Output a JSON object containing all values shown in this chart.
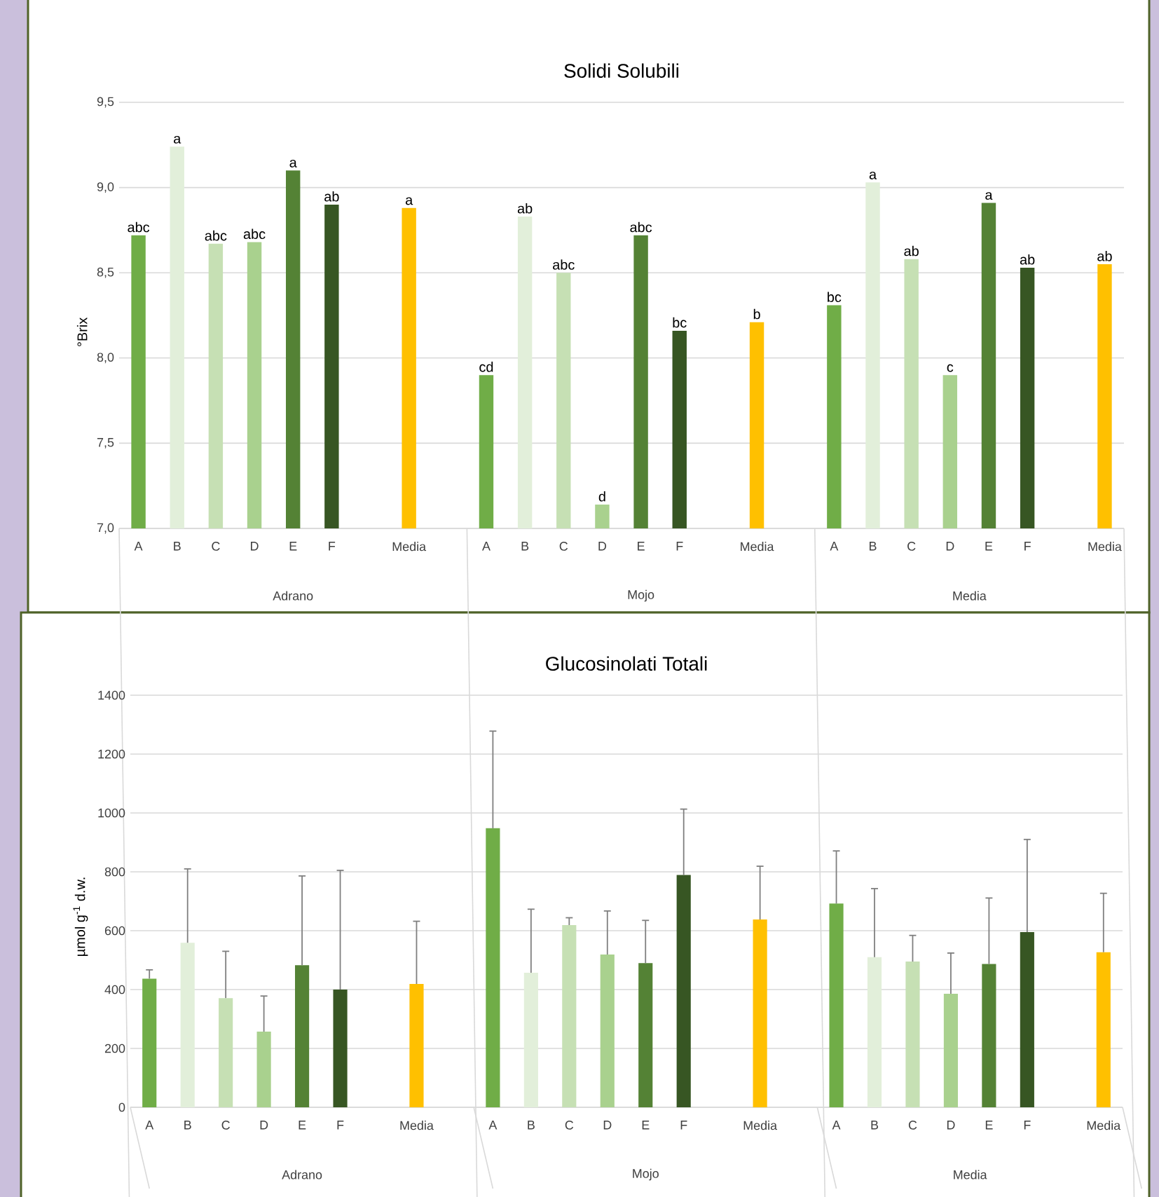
{
  "chart_data": [
    {
      "type": "bar",
      "title": "Solidi Solubili",
      "ylabel": "°Brix",
      "categories": [
        "A",
        "B",
        "C",
        "D",
        "E",
        "F",
        null,
        "Media",
        "A",
        "B",
        "C",
        "D",
        "E",
        "F",
        null,
        "Media",
        "A",
        "B",
        "C",
        "D",
        "E",
        "F",
        null,
        "Media"
      ],
      "values": [
        8.72,
        9.24,
        8.67,
        8.68,
        9.1,
        8.9,
        null,
        8.88,
        7.9,
        8.83,
        8.5,
        7.14,
        8.72,
        8.16,
        null,
        8.21,
        8.31,
        9.03,
        8.58,
        7.9,
        8.91,
        8.53,
        null,
        8.55
      ],
      "colors": [
        "#70ad47",
        "#e2efda",
        "#c6e0b4",
        "#a9d18e",
        "#548235",
        "#375623",
        null,
        "#ffc000",
        "#70ad47",
        "#e2efda",
        "#c6e0b4",
        "#a9d18e",
        "#548235",
        "#375623",
        null,
        "#ffc000",
        "#70ad47",
        "#e2efda",
        "#c6e0b4",
        "#a9d18e",
        "#548235",
        "#375623",
        null,
        "#ffc000"
      ],
      "value_labels": [
        "abc",
        "a",
        "abc",
        "abc",
        "a",
        "ab",
        null,
        "a",
        "cd",
        "ab",
        "abc",
        "d",
        "abc",
        "bc",
        null,
        "b",
        "bc",
        "a",
        "ab",
        "c",
        "a",
        "ab",
        null,
        "ab"
      ],
      "ylim": [
        7.0,
        9.5
      ],
      "yticks": [
        {
          "value": 7.0,
          "label": "7,0"
        },
        {
          "value": 7.5,
          "label": "7,5"
        },
        {
          "value": 8.0,
          "label": "8,0"
        },
        {
          "value": 8.5,
          "label": "8,5"
        },
        {
          "value": 9.0,
          "label": "9,0"
        },
        {
          "value": 9.5,
          "label": "9,5"
        }
      ],
      "grid": "y",
      "annotations": [
        "Adrano",
        "Mojo",
        "Media"
      ]
    },
    {
      "type": "bar",
      "title": "Glucosinolati Totali",
      "ylabel": "µmol g$^{-1}$ d.w.",
      "categories": [
        "A",
        "B",
        "C",
        "D",
        "E",
        "F",
        null,
        "Media",
        "A",
        "B",
        "C",
        "D",
        "E",
        "F",
        null,
        "Media",
        "A",
        "B",
        "C",
        "D",
        "E",
        "F",
        null,
        "Media"
      ],
      "values": [
        437,
        559,
        371,
        257,
        483,
        400,
        null,
        419,
        948,
        457,
        619,
        519,
        490,
        789,
        null,
        638,
        692,
        510,
        495,
        386,
        487,
        595,
        null,
        527
      ],
      "errors": [
        [
          437,
          467
        ],
        [
          559,
          810
        ],
        [
          371,
          530
        ],
        [
          257,
          378
        ],
        [
          483,
          786
        ],
        [
          400,
          805
        ],
        null,
        [
          419,
          632
        ],
        [
          948,
          1278
        ],
        [
          457,
          673
        ],
        [
          619,
          644
        ],
        [
          519,
          667
        ],
        [
          490,
          635
        ],
        [
          789,
          1013
        ],
        null,
        [
          638,
          819
        ],
        [
          692,
          871
        ],
        [
          510,
          743
        ],
        [
          495,
          584
        ],
        [
          386,
          524
        ],
        [
          487,
          711
        ],
        [
          595,
          910
        ],
        null,
        [
          527,
          727
        ]
      ],
      "colors": [
        "#70ad47",
        "#e2efda",
        "#c6e0b4",
        "#a9d18e",
        "#548235",
        "#375623",
        null,
        "#ffc000",
        "#70ad47",
        "#e2efda",
        "#c6e0b4",
        "#a9d18e",
        "#548235",
        "#375623",
        null,
        "#ffc000",
        "#70ad47",
        "#e2efda",
        "#c6e0b4",
        "#a9d18e",
        "#548235",
        "#375623",
        null,
        "#ffc000"
      ],
      "ylim": [
        0,
        1400
      ],
      "yticks": [
        0,
        200,
        400,
        600,
        800,
        1000,
        1200,
        1400
      ],
      "grid": "y",
      "annotations": [
        "Adrano",
        "Mojo",
        "Media"
      ]
    }
  ]
}
